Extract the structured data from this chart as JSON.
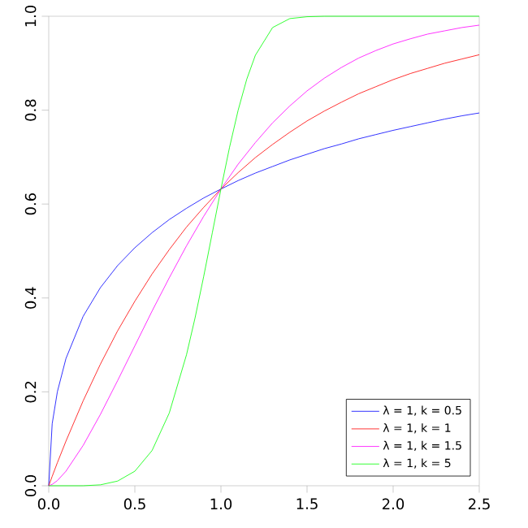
{
  "chart_data": {
    "type": "line",
    "x": [
      0,
      0.02,
      0.05,
      0.1,
      0.2,
      0.3,
      0.4,
      0.5,
      0.6,
      0.7,
      0.8,
      0.9,
      1.0,
      1.1,
      1.2,
      1.3,
      1.4,
      1.5,
      1.6,
      1.7,
      1.8,
      1.9,
      2.0,
      2.1,
      2.2,
      2.3,
      2.4,
      2.5
    ],
    "series": [
      {
        "name": "λ = 1, k = 0.5",
        "color": "#0000ff",
        "values": [
          0,
          0.132,
          0.2,
          0.271,
          0.361,
          0.422,
          0.469,
          0.507,
          0.539,
          0.567,
          0.591,
          0.613,
          0.632,
          0.65,
          0.666,
          0.68,
          0.694,
          0.706,
          0.718,
          0.728,
          0.739,
          0.748,
          0.757,
          0.765,
          0.773,
          0.781,
          0.788,
          0.794
        ]
      },
      {
        "name": "λ = 1, k = 1",
        "color": "#ff0000",
        "values": [
          0,
          0.02,
          0.049,
          0.095,
          0.181,
          0.259,
          0.33,
          0.393,
          0.451,
          0.503,
          0.551,
          0.593,
          0.632,
          0.667,
          0.699,
          0.727,
          0.753,
          0.777,
          0.798,
          0.817,
          0.835,
          0.85,
          0.865,
          0.878,
          0.889,
          0.9,
          0.909,
          0.918
        ]
      },
      {
        "name": "λ = 1, k = 1.5",
        "color": "#ff00ff",
        "values": [
          0,
          0.003,
          0.011,
          0.031,
          0.086,
          0.152,
          0.224,
          0.298,
          0.372,
          0.443,
          0.511,
          0.574,
          0.632,
          0.685,
          0.731,
          0.773,
          0.809,
          0.841,
          0.868,
          0.891,
          0.911,
          0.927,
          0.941,
          0.952,
          0.962,
          0.969,
          0.976,
          0.981
        ]
      },
      {
        "name": "λ = 1, k = 5",
        "color": "#00ff00",
        "x": [
          0,
          0.1,
          0.2,
          0.3,
          0.4,
          0.5,
          0.6,
          0.7,
          0.8,
          0.85,
          0.9,
          0.95,
          1.0,
          1.05,
          1.1,
          1.15,
          1.2,
          1.3,
          1.4,
          1.5,
          1.6,
          2.5
        ],
        "values": [
          0,
          0,
          0,
          0.002,
          0.01,
          0.031,
          0.075,
          0.155,
          0.279,
          0.358,
          0.446,
          0.539,
          0.632,
          0.721,
          0.8,
          0.866,
          0.917,
          0.976,
          0.995,
          0.999,
          1,
          1
        ]
      }
    ],
    "xlim": [
      0,
      2.5
    ],
    "ylim": [
      0,
      1
    ],
    "xticks": [
      {
        "value": 0,
        "label": "0.0"
      },
      {
        "value": 0.5,
        "label": "0.5"
      },
      {
        "value": 1,
        "label": "1.0"
      },
      {
        "value": 1.5,
        "label": "1.5"
      },
      {
        "value": 2,
        "label": "2.0"
      },
      {
        "value": 2.5,
        "label": "2.5"
      }
    ],
    "yticks": [
      {
        "value": 0,
        "label": "0.0"
      },
      {
        "value": 0.2,
        "label": "0.2"
      },
      {
        "value": 0.4,
        "label": "0.4"
      },
      {
        "value": 0.6,
        "label": "0.6"
      },
      {
        "value": 0.8,
        "label": "0.8"
      },
      {
        "value": 1,
        "label": "1.0"
      }
    ],
    "legend": "bottom right",
    "grid": false,
    "marker": "none",
    "line_style": "solid"
  }
}
